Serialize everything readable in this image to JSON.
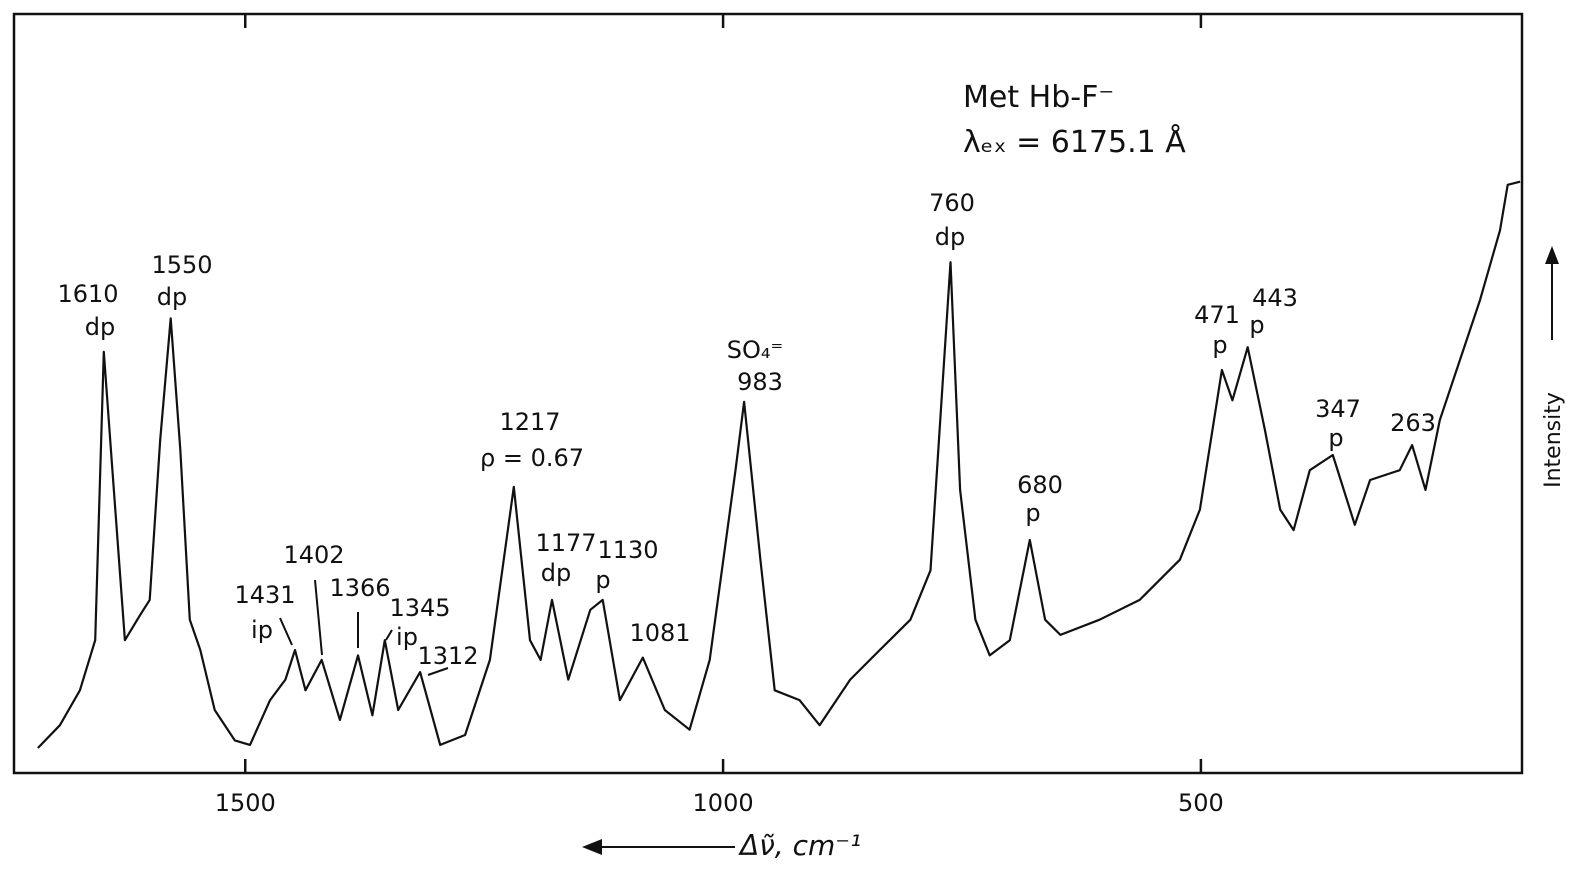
{
  "chart_data": {
    "type": "line",
    "title": "Met Hb-F⁻",
    "subtitle": "λₑₓ = 6175.1 Å",
    "x_label": "Δν̃, cm⁻¹",
    "y_label": "Intensity",
    "color": "#111111",
    "xlim": [
      1742,
      164
    ],
    "ylim": [
      0,
      100
    ],
    "xticks": [
      1500,
      1000,
      500
    ],
    "x": [
      1717,
      1694,
      1673,
      1657,
      1648,
      1639,
      1626,
      1610,
      1600,
      1589,
      1578,
      1568,
      1558,
      1547,
      1532,
      1511,
      1495,
      1474,
      1458,
      1448,
      1437,
      1420,
      1401,
      1382,
      1367,
      1354,
      1340,
      1317,
      1296,
      1270,
      1244,
      1219,
      1202,
      1191,
      1179,
      1162,
      1139,
      1126,
      1108,
      1084,
      1061,
      1035,
      1014,
      987,
      978,
      961,
      946,
      920,
      899,
      867,
      836,
      804,
      783,
      762,
      752,
      736,
      721,
      700,
      679,
      663,
      647,
      606,
      564,
      522,
      501,
      478,
      467,
      451,
      433,
      417,
      403,
      386,
      362,
      339,
      323,
      292,
      279,
      265,
      250,
      229,
      208,
      187,
      179,
      166
    ],
    "values": [
      3.3,
      6.3,
      10.9,
      17.5,
      55.5,
      39.9,
      17.5,
      20.8,
      22.8,
      43.9,
      59.9,
      42.6,
      20.2,
      16.2,
      8.3,
      4.3,
      3.7,
      9.6,
      12.3,
      16.2,
      10.9,
      14.9,
      7.0,
      15.5,
      7.6,
      17.5,
      8.3,
      13.3,
      3.7,
      5.0,
      14.9,
      37.7,
      17.5,
      14.9,
      22.8,
      12.3,
      21.5,
      22.8,
      9.6,
      15.2,
      8.3,
      5.7,
      14.9,
      39.9,
      48.9,
      28.1,
      10.9,
      9.6,
      6.3,
      12.3,
      16.2,
      20.2,
      26.7,
      67.3,
      37.3,
      20.2,
      15.5,
      17.5,
      30.7,
      20.2,
      18.2,
      20.2,
      22.8,
      28.1,
      34.7,
      53.1,
      49.1,
      56.1,
      45.2,
      34.7,
      32.0,
      39.9,
      41.9,
      32.7,
      38.6,
      39.9,
      43.2,
      37.3,
      46.5,
      54.4,
      62.3,
      71.5,
      77.5,
      77.9
    ],
    "annotations": [
      "1610",
      "dp",
      "1550",
      "dp",
      "1431",
      "ip",
      "1402",
      "1366",
      "1345",
      "ip",
      "1312",
      "1217",
      "ρ = 0.67",
      "1177",
      "dp",
      "1130",
      "p",
      "1081",
      "SO₄⁼",
      "983",
      "760",
      "dp",
      "680",
      "p",
      "471",
      "p",
      "443",
      "p",
      "347",
      "p",
      "263"
    ]
  }
}
